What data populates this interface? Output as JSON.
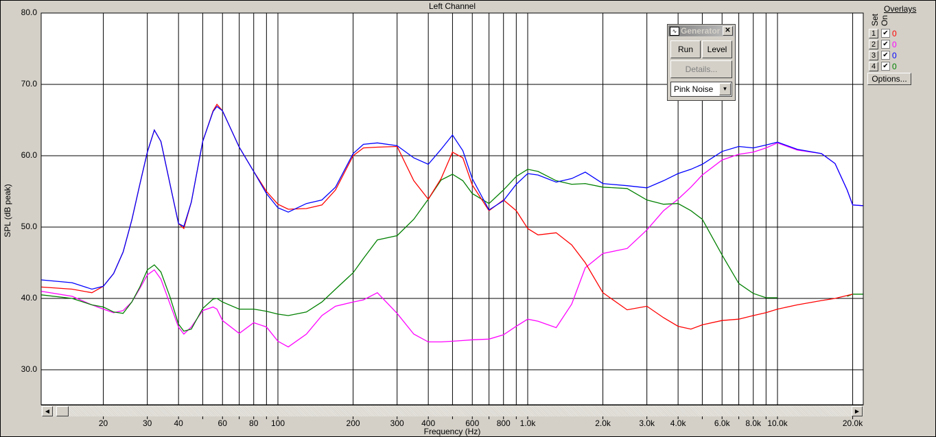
{
  "window": {
    "title": "Left Channel"
  },
  "overlays": {
    "title": "Overlays",
    "set_label": "Set",
    "on_label": "On",
    "rows": [
      {
        "set": "1",
        "on": true,
        "value": "0",
        "color": "#ff0000"
      },
      {
        "set": "2",
        "on": true,
        "value": "0",
        "color": "#ff00ff"
      },
      {
        "set": "3",
        "on": true,
        "value": "0",
        "color": "#0000ff"
      },
      {
        "set": "4",
        "on": true,
        "value": "0",
        "color": "#008000"
      }
    ],
    "options_label": "Options..."
  },
  "generator": {
    "title": "Generator",
    "icon": "waveform-icon",
    "run_label": "Run",
    "level_label": "Level",
    "details_label": "Details...",
    "signal": "Pink Noise"
  },
  "chart_data": {
    "type": "line",
    "title": "Left Channel",
    "xlabel": "Frequency (Hz)",
    "ylabel": "SPL (dB peak)",
    "xscale": "log",
    "xlim": [
      11.3,
      22000
    ],
    "ylim": [
      25.1,
      80
    ],
    "grid": true,
    "yticks": [
      "80.0",
      "70.0",
      "60.0",
      "50.0",
      "40.0",
      "30.0"
    ],
    "ytick_values": [
      80,
      70,
      60,
      50,
      40,
      30
    ],
    "xticks": [
      {
        "v": 20,
        "label": "20"
      },
      {
        "v": 30,
        "label": "30"
      },
      {
        "v": 40,
        "label": "40"
      },
      {
        "v": 60,
        "label": "60"
      },
      {
        "v": 80,
        "label": "80"
      },
      {
        "v": 100,
        "label": "100"
      },
      {
        "v": 200,
        "label": "200"
      },
      {
        "v": 300,
        "label": "300"
      },
      {
        "v": 400,
        "label": "400"
      },
      {
        "v": 600,
        "label": "600"
      },
      {
        "v": 800,
        "label": "800"
      },
      {
        "v": 1000,
        "label": "1.0k"
      },
      {
        "v": 2000,
        "label": "2.0k"
      },
      {
        "v": 3000,
        "label": "3.0k"
      },
      {
        "v": 4000,
        "label": "4.0k"
      },
      {
        "v": 6000,
        "label": "6.0k"
      },
      {
        "v": 8000,
        "label": "8.0k"
      },
      {
        "v": 10000,
        "label": "10.0k"
      },
      {
        "v": 20000,
        "label": "20.0k"
      }
    ],
    "gridlines_x": [
      20,
      30,
      40,
      50,
      60,
      70,
      80,
      90,
      100,
      200,
      300,
      400,
      500,
      600,
      700,
      800,
      900,
      1000,
      2000,
      3000,
      4000,
      5000,
      6000,
      7000,
      8000,
      9000,
      10000,
      20000
    ],
    "x": [
      11.3,
      15,
      18,
      20,
      22,
      24,
      26,
      28,
      30,
      32,
      34,
      37,
      40,
      42,
      45,
      50,
      55,
      57,
      60,
      70,
      80,
      90,
      100,
      110,
      130,
      150,
      170,
      200,
      220,
      250,
      300,
      350,
      400,
      450,
      500,
      550,
      600,
      700,
      800,
      900,
      1000,
      1100,
      1300,
      1500,
      1700,
      2000,
      2500,
      3000,
      3500,
      4000,
      4500,
      5000,
      6000,
      7000,
      8000,
      9000,
      10000,
      12000,
      15000,
      17000,
      19000,
      20000,
      22000
    ],
    "series": [
      {
        "color": "#ff00ff",
        "values": [
          41.0,
          40.3,
          39.1,
          38.5,
          38.0,
          38.3,
          39.5,
          41.4,
          43.3,
          44.0,
          42.7,
          39.2,
          36.0,
          35.0,
          36.0,
          38.3,
          38.8,
          38.5,
          36.9,
          35.1,
          36.6,
          36.0,
          34.0,
          33.2,
          35.0,
          37.6,
          38.9,
          39.5,
          39.8,
          40.8,
          37.9,
          35.0,
          33.9,
          33.9,
          34.0,
          34.1,
          34.2,
          34.3,
          34.9,
          36.1,
          37.1,
          36.8,
          35.9,
          39.2,
          44.3,
          46.3,
          47.0,
          49.6,
          52.3,
          53.9,
          55.6,
          57.3,
          59.4,
          60.2,
          60.5,
          61.1,
          61.8,
          60.8,
          60.3,
          58.9,
          55.2,
          53.1,
          53.0
        ]
      },
      {
        "color": "#008000",
        "values": [
          40.5,
          40.0,
          39.1,
          38.8,
          38.1,
          37.9,
          39.5,
          41.6,
          44.0,
          44.7,
          43.7,
          40.2,
          36.4,
          35.4,
          35.7,
          38.6,
          39.9,
          40.0,
          39.5,
          38.5,
          38.5,
          38.2,
          37.8,
          37.6,
          38.1,
          39.5,
          41.3,
          43.6,
          45.6,
          48.2,
          48.8,
          51.1,
          53.9,
          56.6,
          57.4,
          56.5,
          54.7,
          53.3,
          55.2,
          57.1,
          58.1,
          57.8,
          56.5,
          56.0,
          56.1,
          55.6,
          55.4,
          53.8,
          53.2,
          53.3,
          52.3,
          51.1,
          46.1,
          42.1,
          40.7,
          40.1,
          40.1,
          null,
          null,
          null,
          40.3,
          40.6,
          40.6
        ]
      },
      {
        "color": "#ff0000",
        "values": [
          41.6,
          41.3,
          40.8,
          41.7,
          43.5,
          46.5,
          51,
          56,
          60.5,
          63.6,
          62,
          56,
          50.5,
          49.8,
          53.5,
          62,
          66.3,
          67.2,
          66.3,
          61.2,
          57.8,
          55,
          53.2,
          52.5,
          52.6,
          53.1,
          55.2,
          60,
          61.1,
          61.2,
          61.3,
          56.5,
          53.9,
          56.8,
          60.5,
          59.7,
          55.9,
          52.3,
          53.8,
          52.3,
          49.8,
          48.9,
          49.2,
          47.5,
          45,
          40.8,
          38.4,
          38.9,
          37.3,
          36.1,
          35.7,
          36.3,
          36.9,
          37.1,
          37.6,
          38.0,
          38.5,
          39.1,
          39.7,
          40.0,
          40.4,
          40.6,
          null
        ]
      },
      {
        "color": "#0000ff",
        "values": [
          42.6,
          42.2,
          41.3,
          41.7,
          43.5,
          46.5,
          51,
          56,
          60.5,
          63.6,
          62,
          56,
          50.5,
          50.1,
          53.5,
          62,
          66.2,
          66.9,
          66.3,
          61.2,
          57.8,
          54.7,
          52.7,
          52.1,
          53.3,
          53.8,
          55.6,
          60.3,
          61.6,
          61.8,
          61.4,
          59.7,
          58.8,
          60.9,
          62.9,
          60.7,
          56.8,
          52.4,
          53.7,
          56.0,
          57.5,
          57.3,
          56.3,
          56.8,
          57.7,
          56.1,
          55.8,
          55.5,
          56.5,
          57.5,
          58.1,
          58.8,
          60.6,
          61.3,
          61.1,
          61.5,
          61.9,
          60.9,
          60.3,
          58.9,
          55.2,
          53.1,
          53.0
        ]
      }
    ]
  }
}
